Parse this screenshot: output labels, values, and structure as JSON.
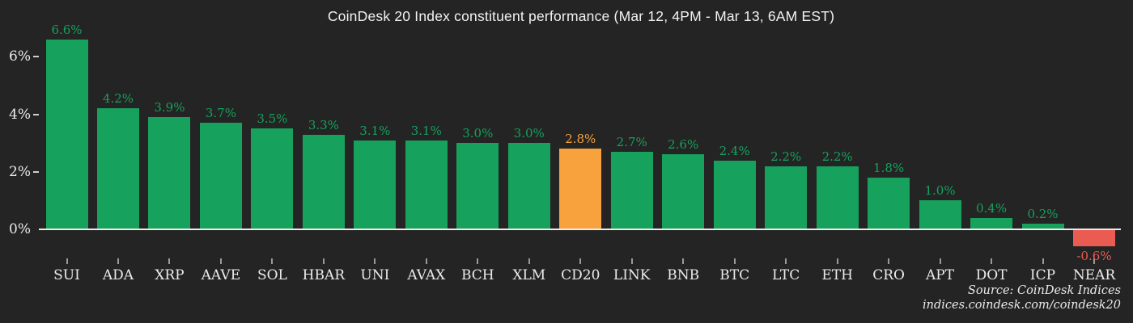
{
  "chart_data": {
    "type": "bar",
    "title": "CoinDesk 20 Index constituent performance (Mar 12, 4PM - Mar 13, 6AM EST)",
    "categories": [
      "SUI",
      "ADA",
      "XRP",
      "AAVE",
      "SOL",
      "HBAR",
      "UNI",
      "AVAX",
      "BCH",
      "XLM",
      "CD20",
      "LINK",
      "BNB",
      "BTC",
      "LTC",
      "ETH",
      "CRO",
      "APT",
      "DOT",
      "ICP",
      "NEAR"
    ],
    "values": [
      6.6,
      4.2,
      3.9,
      3.7,
      3.5,
      3.3,
      3.1,
      3.1,
      3.0,
      3.0,
      2.8,
      2.7,
      2.6,
      2.4,
      2.2,
      2.2,
      1.8,
      1.0,
      0.4,
      0.2,
      -0.6
    ],
    "value_labels": [
      "6.6%",
      "4.2%",
      "3.9%",
      "3.7%",
      "3.5%",
      "3.3%",
      "3.1%",
      "3.1%",
      "3.0%",
      "3.0%",
      "2.8%",
      "2.7%",
      "2.6%",
      "2.4%",
      "2.2%",
      "2.2%",
      "1.8%",
      "1.0%",
      "0.4%",
      "0.2%",
      "-0.6%"
    ],
    "highlight_category": "CD20",
    "xlabel": "",
    "ylabel": "",
    "ylim": [
      -1.2,
      6.8
    ],
    "grid": false,
    "legend": "none",
    "yticks": [
      {
        "label": "0%",
        "value": 0
      },
      {
        "label": "2%",
        "value": 2
      },
      {
        "label": "4%",
        "value": 4
      },
      {
        "label": "6%",
        "value": 6
      }
    ],
    "colors": {
      "positive": "#16a15c",
      "highlight": "#f8a23e",
      "negative": "#ea5b52",
      "background": "#242424",
      "title_text": "#f2f2f2",
      "axis_text": "#eaeaea",
      "zero_line": "#ececec"
    }
  },
  "source": {
    "line1": "Source: CoinDesk Indices",
    "line2": "indices.coindesk.com/coindesk20"
  }
}
